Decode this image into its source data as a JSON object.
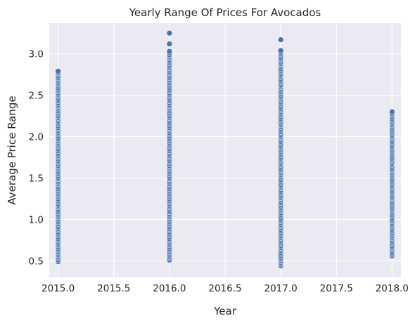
{
  "chart_data": {
    "type": "scatter",
    "title": "Yearly Range Of Prices For Avocados",
    "xlabel": "Year",
    "ylabel": "Average Price Range",
    "xlim": [
      2014.92,
      2018.08
    ],
    "ylim": [
      0.3,
      3.37
    ],
    "xticks": [
      "2015.0",
      "2015.5",
      "2016.0",
      "2016.5",
      "2017.0",
      "2017.5",
      "2018.0"
    ],
    "xtick_values": [
      2015.0,
      2015.5,
      2016.0,
      2016.5,
      2017.0,
      2017.5,
      2018.0
    ],
    "yticks": [
      "0.5",
      "1.0",
      "1.5",
      "2.0",
      "2.5",
      "3.0"
    ],
    "ytick_values": [
      0.5,
      1.0,
      1.5,
      2.0,
      2.5,
      3.0
    ],
    "grid": true,
    "series": [
      {
        "color": "#4c72b0",
        "points_by_year": [
          {
            "x": 2015,
            "min": 0.49,
            "max": 2.79,
            "step": 0.02,
            "outliers": []
          },
          {
            "x": 2016,
            "min": 0.51,
            "max": 3.03,
            "step": 0.02,
            "outliers": [
              3.12,
              3.25
            ]
          },
          {
            "x": 2017,
            "min": 0.44,
            "max": 3.05,
            "step": 0.02,
            "outliers": [
              3.17
            ]
          },
          {
            "x": 2018,
            "min": 0.56,
            "max": 2.3,
            "step": 0.02,
            "outliers": []
          }
        ]
      }
    ]
  }
}
